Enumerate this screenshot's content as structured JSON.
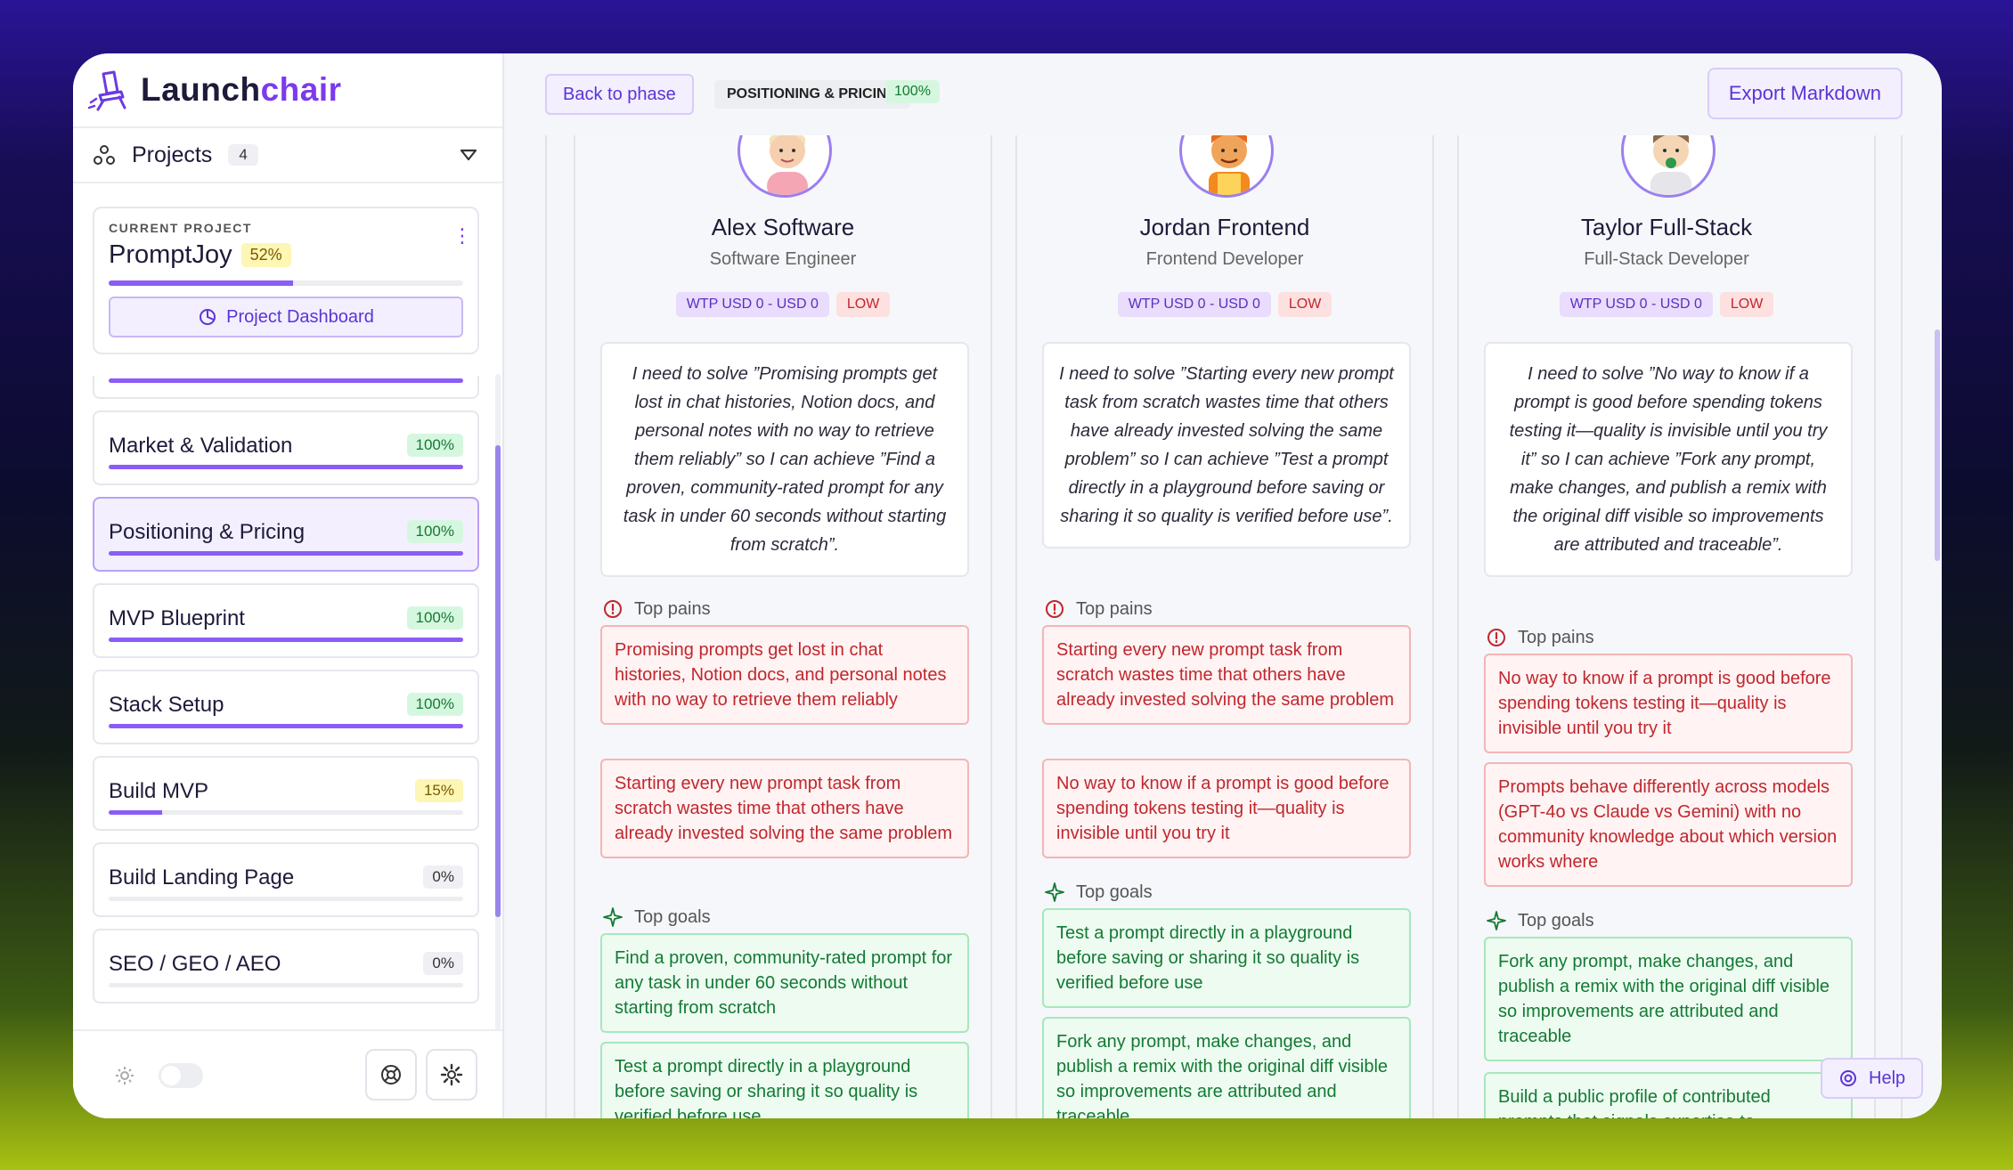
{
  "app": {
    "name_prefix": "Launch",
    "name_suffix": "chair"
  },
  "projects": {
    "label": "Projects",
    "count": "4"
  },
  "current_project": {
    "caption": "CURRENT PROJECT",
    "name": "PromptJoy",
    "progress_label": "52%",
    "progress": 0.52,
    "dashboard_label": "Project Dashboard"
  },
  "phases": [
    {
      "label": "",
      "pct_label": "",
      "progress": 1.0,
      "style": "g"
    },
    {
      "label": "Market & Validation",
      "pct_label": "100%",
      "progress": 1.0,
      "style": "g"
    },
    {
      "label": "Positioning & Pricing",
      "pct_label": "100%",
      "progress": 1.0,
      "style": "g",
      "active": true
    },
    {
      "label": "MVP Blueprint",
      "pct_label": "100%",
      "progress": 1.0,
      "style": "g"
    },
    {
      "label": "Stack Setup",
      "pct_label": "100%",
      "progress": 1.0,
      "style": "g"
    },
    {
      "label": "Build MVP",
      "pct_label": "15%",
      "progress": 0.15,
      "style": "y"
    },
    {
      "label": "Build Landing Page",
      "pct_label": "0%",
      "progress": 0.0,
      "style": "z"
    },
    {
      "label": "SEO / GEO / AEO",
      "pct_label": "0%",
      "progress": 0.0,
      "style": "z"
    }
  ],
  "topbar": {
    "back_label": "Back to phase",
    "phase_tag": "POSITIONING & PRICING",
    "phase_pct": "100%",
    "export_label": "Export Markdown"
  },
  "personas": [
    {
      "name": "Alex Software",
      "role": "Software Engineer",
      "wtp": "WTP USD 0 - USD 0",
      "level": "LOW",
      "quote": "I need to solve ”Promising prompts get lost in chat histories, Notion docs, and personal notes with no way to retrieve them reliably” so I can achieve ”Find a proven, community-rated prompt for any task in under 60 seconds without starting from scratch”.",
      "pains_label": "Top pains",
      "pains": [
        "Promising prompts get lost in chat histories, Notion docs, and personal notes with no way to retrieve them reliably",
        "Starting every new prompt task from scratch wastes time that others have already invested solving the same problem"
      ],
      "goals_label": "Top goals",
      "goals": [
        "Find a proven, community-rated prompt for any task in under 60 seconds without starting from scratch",
        "Test a prompt directly in a playground before saving or sharing it so quality is verified before use"
      ]
    },
    {
      "name": "Jordan Frontend",
      "role": "Frontend Developer",
      "wtp": "WTP USD 0 - USD 0",
      "level": "LOW",
      "quote": "I need to solve ”Starting every new prompt task from scratch wastes time that others have already invested solving the same problem” so I can achieve ”Test a prompt directly in a playground before saving or sharing it so quality is verified before use”.",
      "pains_label": "Top pains",
      "pains": [
        "Starting every new prompt task from scratch wastes time that others have already invested solving the same problem",
        "No way to know if a prompt is good before spending tokens testing it—quality is invisible until you try it"
      ],
      "goals_label": "Top goals",
      "goals": [
        "Test a prompt directly in a playground before saving or sharing it so quality is verified before use",
        "Fork any prompt, make changes, and publish a remix with the original diff visible so improvements are attributed and traceable"
      ]
    },
    {
      "name": "Taylor Full-Stack",
      "role": "Full-Stack Developer",
      "wtp": "WTP USD 0 - USD 0",
      "level": "LOW",
      "quote": "I need to solve ”No way to know if a prompt is good before spending tokens testing it—quality is invisible until you try it” so I can achieve ”Fork any prompt, make changes, and publish a remix with the original diff visible so improvements are attributed and traceable”.",
      "pains_label": "Top pains",
      "pains": [
        "No way to know if a prompt is good before spending tokens testing it—quality is invisible until you try it",
        "Prompts behave differently across models (GPT-4o vs Claude vs Gemini) with no community knowledge about which version works where"
      ],
      "goals_label": "Top goals",
      "goals": [
        "Fork any prompt, make changes, and publish a remix with the original diff visible so improvements are attributed and traceable",
        "Build a public profile of contributed prompts that signals expertise to"
      ]
    }
  ],
  "help_label": "Help",
  "colors": {
    "accent": "#7c3aed",
    "green": "#137a33",
    "red": "#c0272d"
  }
}
